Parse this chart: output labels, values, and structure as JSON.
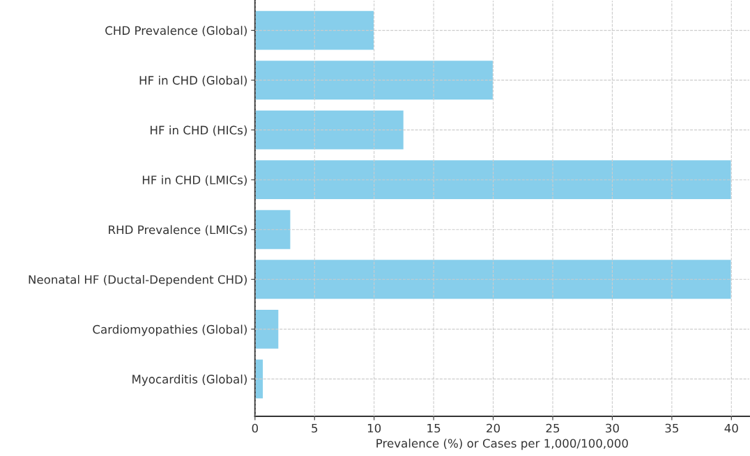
{
  "chart_data": {
    "type": "bar",
    "orientation": "horizontal",
    "xlabel": "Prevalence (%) or Cases per 1,000/100,000",
    "categories": [
      "CHD Prevalence (Global)",
      "HF in CHD (Global)",
      "HF in CHD (HICs)",
      "HF in CHD (LMICs)",
      "RHD Prevalence (LMICs)",
      "Neonatal HF (Ductal-Dependent CHD)",
      "Cardiomyopathies (Global)",
      "Myocarditis (Global)"
    ],
    "values": [
      10,
      20,
      12.5,
      40,
      3,
      40,
      2,
      0.7
    ],
    "color": "#87ceeb",
    "xlim": [
      0,
      41.5
    ],
    "xticks": [
      0,
      5,
      10,
      15,
      20,
      25,
      30,
      35,
      40
    ],
    "grid": true
  }
}
